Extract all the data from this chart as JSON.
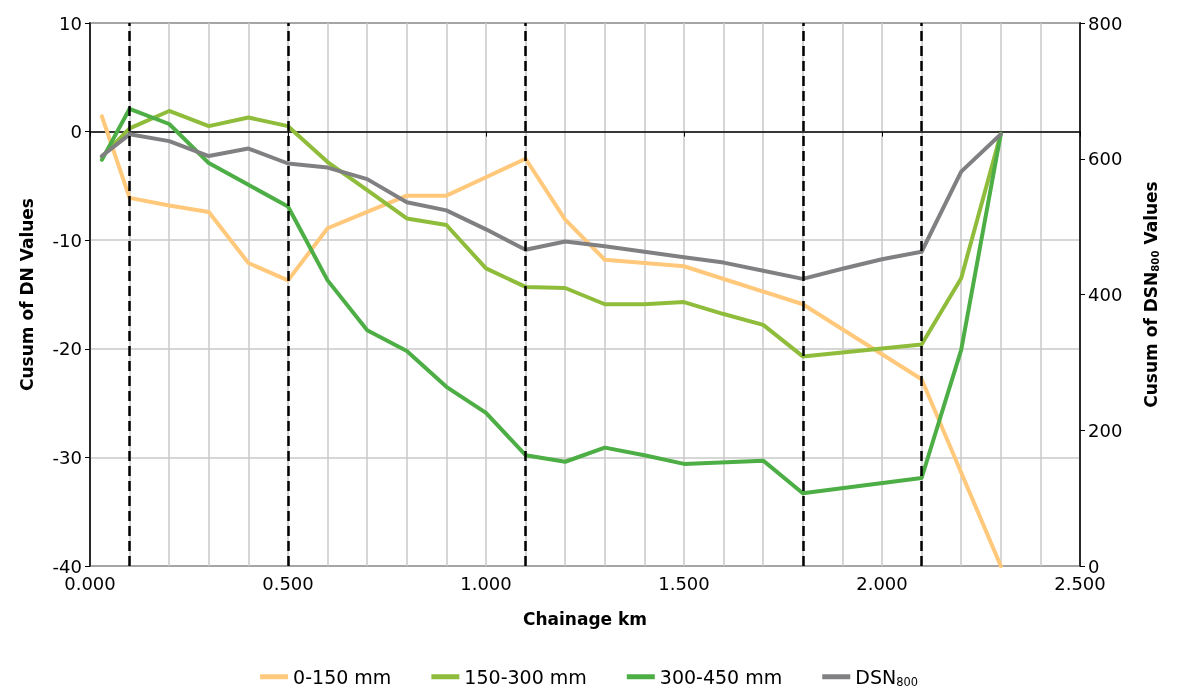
{
  "chart_data": {
    "type": "line",
    "xlabel": "Chainage km",
    "ylabel": "Cusum of DN Values",
    "y2label": "Cusum of DSN$_{800}$ Values",
    "xlim": [
      0,
      2.5
    ],
    "xticks": [
      {
        "value": 0,
        "label": "0.000"
      },
      {
        "value": 0.5,
        "label": "0.500"
      },
      {
        "value": 1,
        "label": "1.000"
      },
      {
        "value": 1.5,
        "label": "1.500"
      },
      {
        "value": 2,
        "label": "2.000"
      },
      {
        "value": 2.5,
        "label": "2.500"
      }
    ],
    "ylim": [
      -40,
      10
    ],
    "yticks": [
      -40,
      -30,
      -20,
      -10,
      0,
      10
    ],
    "y2lim": [
      0,
      800
    ],
    "y2ticks": [
      0,
      200,
      400,
      600,
      800
    ],
    "grid": true,
    "legend": "bottom",
    "marker": "none",
    "line_style": "solid",
    "series": [
      {
        "name": "0-150 mm",
        "color": "#ffc87a",
        "x": [
          0.03,
          0.1,
          0.2,
          0.3,
          0.4,
          0.5,
          0.6,
          0.7,
          0.8,
          0.9,
          1.0,
          1.1,
          1.2,
          1.3,
          1.5,
          1.8,
          2.1,
          2.3
        ],
        "values": [
          1.4,
          -6.1,
          -6.8,
          -7.4,
          -12.1,
          -13.7,
          -8.9,
          -7.4,
          -5.9,
          -5.9,
          -4.2,
          -2.5,
          -8.1,
          -11.8,
          -12.4,
          -15.9,
          -22.8,
          -40
        ]
      },
      {
        "name": "150-300 mm",
        "color": "#8fbc3a",
        "x": [
          0.03,
          0.1,
          0.2,
          0.3,
          0.4,
          0.5,
          0.6,
          0.7,
          0.8,
          0.9,
          1.0,
          1.1,
          1.2,
          1.3,
          1.4,
          1.5,
          1.6,
          1.7,
          1.8,
          2.1,
          2.2,
          2.3
        ],
        "values": [
          -2.3,
          0.3,
          1.9,
          0.5,
          1.3,
          0.5,
          -2.8,
          -5.4,
          -8.0,
          -8.6,
          -12.6,
          -14.3,
          -14.4,
          -15.9,
          -15.9,
          -15.7,
          -16.8,
          -17.8,
          -20.7,
          -19.6,
          -13.5,
          -0.2
        ]
      },
      {
        "name": "300-450 mm",
        "color": "#4cae45",
        "x": [
          0.03,
          0.1,
          0.2,
          0.3,
          0.4,
          0.5,
          0.6,
          0.7,
          0.8,
          0.9,
          1.0,
          1.1,
          1.2,
          1.3,
          1.4,
          1.5,
          1.7,
          1.8,
          2.1,
          2.2,
          2.3
        ],
        "values": [
          -2.6,
          2.1,
          0.7,
          -2.9,
          -4.9,
          -6.9,
          -13.7,
          -18.3,
          -20.2,
          -23.5,
          -25.9,
          -29.8,
          -30.4,
          -29.1,
          -29.8,
          -30.6,
          -30.3,
          -33.3,
          -31.9,
          -20.1,
          -0.2
        ]
      },
      {
        "name": "DSN$_{800}$",
        "color": "#808083",
        "axis": "y2",
        "x": [
          0.03,
          0.1,
          0.2,
          0.3,
          0.4,
          0.5,
          0.6,
          0.7,
          0.8,
          0.9,
          1.0,
          1.1,
          1.2,
          1.3,
          1.4,
          1.5,
          1.6,
          1.7,
          1.8,
          1.9,
          2.0,
          2.1,
          2.2,
          2.3
        ],
        "values": [
          604,
          636,
          626,
          604,
          615,
          593,
          587,
          570,
          536,
          524,
          496,
          466,
          478,
          471,
          463,
          455,
          447,
          435,
          423,
          438,
          452,
          463,
          581,
          636
        ]
      }
    ],
    "ref_lines": [
      {
        "axis": "x",
        "value": 0.1,
        "color": "#000000",
        "line_style": "dashed"
      },
      {
        "axis": "x",
        "value": 0.5,
        "color": "#000000",
        "line_style": "dashed"
      },
      {
        "axis": "x",
        "value": 1.1,
        "color": "#000000",
        "line_style": "dashed"
      },
      {
        "axis": "x",
        "value": 1.8,
        "color": "#000000",
        "line_style": "dashed"
      },
      {
        "axis": "x",
        "value": 2.1,
        "color": "#000000",
        "line_style": "dashed"
      }
    ]
  }
}
